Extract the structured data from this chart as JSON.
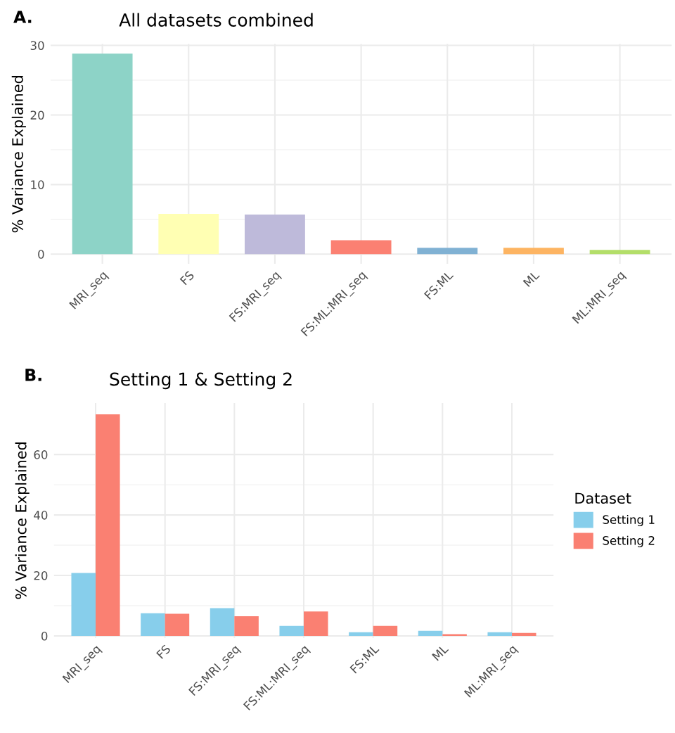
{
  "chart_data": [
    {
      "type": "bar",
      "title": "All datasets combined",
      "ylabel": "% Variance Explained",
      "annotations": [
        "A."
      ],
      "categories": [
        "MRI_seq",
        "FS",
        "FS:MRI_seq",
        "FS:ML:MRI_seq",
        "FS:ML",
        "ML",
        "ML:MRI_seq"
      ],
      "values": [
        28.8,
        5.8,
        5.7,
        2.0,
        0.9,
        0.9,
        0.6
      ],
      "colors": [
        "#8dd3c7",
        "#ffffb3",
        "#bebada",
        "#fb8072",
        "#80b1d3",
        "#fdb462",
        "#b3de69"
      ],
      "ylim": [
        -1.4,
        30.2
      ],
      "yticks": [
        0,
        10,
        20,
        30
      ],
      "grid": true
    },
    {
      "type": "bar",
      "title": "Setting 1 & Setting 2",
      "ylabel": "% Variance Explained",
      "annotations": [
        "B."
      ],
      "legend_title": "Dataset",
      "legend": "right",
      "categories": [
        "MRI_seq",
        "FS",
        "FS:MRI_seq",
        "FS:ML:MRI_seq",
        "FS:ML",
        "ML",
        "ML:MRI_seq"
      ],
      "series": [
        {
          "name": "Setting 1",
          "color": "#87ceeb",
          "values": [
            20.8,
            7.5,
            9.2,
            3.3,
            1.2,
            1.7,
            1.2
          ]
        },
        {
          "name": "Setting 2",
          "color": "#fa8072",
          "values": [
            73.3,
            7.3,
            6.5,
            8.1,
            3.3,
            0.6,
            1.0
          ]
        }
      ],
      "ylim": [
        -0.6,
        77
      ],
      "yticks": [
        0,
        20,
        40,
        60
      ],
      "grid": true
    }
  ]
}
